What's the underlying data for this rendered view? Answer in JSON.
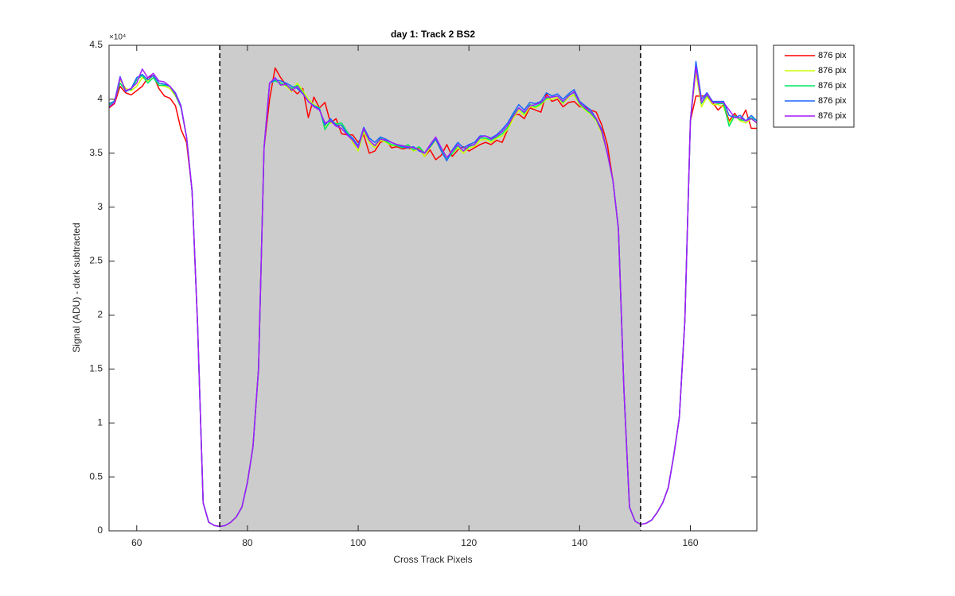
{
  "chart_data": {
    "type": "line",
    "title": "day 1: Track 2  BS2",
    "x_label": "Cross Track Pixels",
    "y_label": "Signal (ADU) - dark subtracted",
    "y_exponent": "×10⁴",
    "xlim": [
      55,
      172
    ],
    "ylim": [
      0,
      4.5
    ],
    "xticks": [
      60,
      80,
      100,
      120,
      140,
      160
    ],
    "yticks": [
      0,
      0.5,
      1,
      1.5,
      2,
      2.5,
      3,
      3.5,
      4,
      4.5
    ],
    "highlight_range": [
      75,
      151
    ],
    "legend": "outside-top-right",
    "x": [
      55,
      56,
      57,
      58,
      59,
      60,
      61,
      62,
      63,
      64,
      65,
      66,
      67,
      68,
      69,
      70,
      71,
      72,
      73,
      74,
      75,
      76,
      77,
      78,
      79,
      80,
      81,
      82,
      83,
      84,
      85,
      86,
      87,
      88,
      89,
      90,
      91,
      92,
      93,
      94,
      95,
      96,
      97,
      98,
      99,
      100,
      101,
      102,
      103,
      104,
      105,
      106,
      107,
      108,
      109,
      110,
      111,
      112,
      113,
      114,
      115,
      116,
      117,
      118,
      119,
      120,
      121,
      122,
      123,
      124,
      125,
      126,
      127,
      128,
      129,
      130,
      131,
      132,
      133,
      134,
      135,
      136,
      137,
      138,
      139,
      140,
      141,
      142,
      143,
      144,
      145,
      146,
      147,
      148,
      149,
      150,
      151,
      152,
      153,
      154,
      155,
      156,
      157,
      158,
      159,
      160,
      161,
      162,
      163,
      164,
      165,
      166,
      167,
      168,
      169,
      170,
      171,
      172
    ],
    "series": [
      {
        "name": "876 pix",
        "color": "#ff0000",
        "values": [
          3.92,
          3.96,
          4.12,
          4.06,
          4.04,
          4.08,
          4.12,
          4.2,
          4.22,
          4.1,
          4.03,
          4.01,
          3.94,
          3.72,
          3.6,
          3.15,
          1.9,
          0.26,
          0.08,
          0.05,
          0.04,
          0.05,
          0.08,
          0.13,
          0.22,
          0.45,
          0.78,
          1.5,
          3.55,
          4.0,
          4.29,
          4.2,
          4.13,
          4.1,
          4.05,
          4.1,
          3.83,
          4.02,
          3.92,
          3.97,
          3.78,
          3.82,
          3.68,
          3.67,
          3.67,
          3.6,
          3.67,
          3.5,
          3.52,
          3.6,
          3.62,
          3.55,
          3.56,
          3.54,
          3.55,
          3.53,
          3.55,
          3.47,
          3.53,
          3.44,
          3.48,
          3.58,
          3.47,
          3.53,
          3.56,
          3.52,
          3.55,
          3.58,
          3.6,
          3.58,
          3.62,
          3.6,
          3.72,
          3.85,
          3.86,
          3.82,
          3.92,
          3.9,
          3.88,
          4.05,
          3.98,
          4.0,
          3.93,
          3.97,
          3.98,
          3.93,
          3.93,
          3.9,
          3.88,
          3.76,
          3.58,
          3.25,
          2.8,
          1.3,
          0.22,
          0.09,
          0.06,
          0.07,
          0.1,
          0.17,
          0.26,
          0.4,
          0.7,
          1.05,
          1.95,
          3.8,
          4.03,
          4.03,
          4.03,
          3.97,
          3.9,
          3.95,
          3.8,
          3.87,
          3.8,
          3.9,
          3.73,
          3.73
        ]
      },
      {
        "name": "876 pix",
        "color": "#ccff00",
        "values": [
          3.95,
          3.98,
          4.18,
          4.1,
          4.08,
          4.12,
          4.2,
          4.17,
          4.2,
          4.13,
          4.12,
          4.1,
          4.03,
          3.93,
          3.65,
          3.15,
          1.9,
          0.26,
          0.08,
          0.05,
          0.04,
          0.05,
          0.08,
          0.13,
          0.22,
          0.45,
          0.78,
          1.5,
          3.55,
          4.15,
          4.18,
          4.15,
          4.12,
          4.07,
          4.15,
          4.08,
          4.0,
          3.95,
          3.92,
          3.75,
          3.78,
          3.78,
          3.75,
          3.7,
          3.6,
          3.52,
          3.7,
          3.6,
          3.55,
          3.62,
          3.6,
          3.57,
          3.57,
          3.55,
          3.57,
          3.52,
          3.54,
          3.47,
          3.55,
          3.62,
          3.52,
          3.45,
          3.5,
          3.55,
          3.5,
          3.55,
          3.56,
          3.62,
          3.63,
          3.6,
          3.64,
          3.66,
          3.72,
          3.82,
          3.9,
          3.85,
          3.93,
          3.92,
          3.95,
          4.0,
          4.0,
          4.02,
          3.96,
          4.02,
          4.04,
          3.95,
          3.9,
          3.86,
          3.8,
          3.68,
          3.5,
          3.25,
          2.8,
          1.3,
          0.22,
          0.09,
          0.06,
          0.07,
          0.1,
          0.17,
          0.26,
          0.4,
          0.7,
          1.05,
          1.95,
          3.8,
          4.25,
          3.93,
          4.02,
          3.95,
          3.95,
          3.93,
          3.78,
          3.85,
          3.8,
          3.78,
          3.82,
          3.78
        ]
      },
      {
        "name": "876 pix",
        "color": "#00e864",
        "values": [
          3.94,
          3.99,
          4.15,
          4.08,
          4.09,
          4.18,
          4.22,
          4.15,
          4.2,
          4.13,
          4.13,
          4.12,
          4.04,
          3.92,
          3.65,
          3.15,
          1.9,
          0.26,
          0.08,
          0.05,
          0.04,
          0.05,
          0.08,
          0.13,
          0.22,
          0.45,
          0.78,
          1.5,
          3.55,
          4.15,
          4.17,
          4.15,
          4.13,
          4.1,
          4.13,
          4.06,
          3.98,
          3.94,
          3.92,
          3.72,
          3.8,
          3.77,
          3.78,
          3.7,
          3.63,
          3.55,
          3.72,
          3.62,
          3.57,
          3.64,
          3.61,
          3.58,
          3.57,
          3.55,
          3.58,
          3.53,
          3.56,
          3.5,
          3.57,
          3.63,
          3.53,
          3.44,
          3.5,
          3.57,
          3.52,
          3.56,
          3.58,
          3.64,
          3.64,
          3.62,
          3.65,
          3.68,
          3.74,
          3.86,
          3.92,
          3.87,
          3.95,
          3.93,
          3.96,
          4.01,
          4.02,
          4.03,
          3.97,
          4.04,
          4.06,
          3.96,
          3.91,
          3.87,
          3.81,
          3.7,
          3.5,
          3.25,
          2.8,
          1.3,
          0.22,
          0.09,
          0.06,
          0.07,
          0.1,
          0.17,
          0.26,
          0.4,
          0.7,
          1.05,
          1.95,
          3.8,
          4.33,
          3.96,
          4.04,
          3.97,
          3.96,
          3.96,
          3.75,
          3.85,
          3.81,
          3.8,
          3.83,
          3.8
        ]
      },
      {
        "name": "876 pix",
        "color": "#1a66ff",
        "values": [
          3.96,
          3.98,
          4.21,
          4.07,
          4.1,
          4.2,
          4.23,
          4.18,
          4.22,
          4.15,
          4.14,
          4.12,
          4.06,
          3.94,
          3.65,
          3.15,
          1.9,
          0.26,
          0.08,
          0.05,
          0.04,
          0.05,
          0.08,
          0.13,
          0.22,
          0.45,
          0.78,
          1.5,
          3.55,
          4.15,
          4.18,
          4.17,
          4.15,
          4.12,
          4.1,
          4.05,
          3.98,
          3.94,
          3.91,
          3.76,
          3.82,
          3.76,
          3.76,
          3.68,
          3.64,
          3.57,
          3.74,
          3.64,
          3.6,
          3.65,
          3.63,
          3.6,
          3.58,
          3.56,
          3.55,
          3.56,
          3.52,
          3.5,
          3.56,
          3.63,
          3.52,
          3.43,
          3.53,
          3.6,
          3.55,
          3.58,
          3.6,
          3.66,
          3.66,
          3.64,
          3.67,
          3.72,
          3.78,
          3.87,
          3.95,
          3.9,
          3.97,
          3.96,
          3.98,
          4.06,
          4.03,
          4.05,
          4.0,
          4.05,
          4.09,
          3.98,
          3.94,
          3.9,
          3.82,
          3.72,
          3.5,
          3.25,
          2.8,
          1.3,
          0.22,
          0.09,
          0.06,
          0.07,
          0.1,
          0.17,
          0.26,
          0.4,
          0.7,
          1.05,
          1.95,
          3.8,
          4.35,
          4.0,
          4.06,
          3.98,
          3.98,
          3.98,
          3.85,
          3.83,
          3.85,
          3.8,
          3.85,
          3.8
        ]
      },
      {
        "name": "876 pix",
        "color": "#a51aff",
        "values": [
          3.93,
          3.97,
          4.2,
          4.08,
          4.1,
          4.15,
          4.28,
          4.2,
          4.24,
          4.17,
          4.16,
          4.12,
          4.05,
          3.93,
          3.65,
          3.15,
          1.9,
          0.26,
          0.08,
          0.05,
          0.04,
          0.05,
          0.08,
          0.13,
          0.22,
          0.45,
          0.78,
          1.5,
          3.55,
          4.15,
          4.2,
          4.13,
          4.14,
          4.08,
          4.12,
          4.05,
          3.98,
          3.93,
          3.9,
          3.78,
          3.8,
          3.75,
          3.73,
          3.67,
          3.62,
          3.55,
          3.73,
          3.62,
          3.57,
          3.63,
          3.62,
          3.6,
          3.58,
          3.57,
          3.56,
          3.55,
          3.53,
          3.5,
          3.58,
          3.65,
          3.55,
          3.46,
          3.52,
          3.58,
          3.52,
          3.57,
          3.58,
          3.65,
          3.66,
          3.63,
          3.66,
          3.7,
          3.76,
          3.84,
          3.92,
          3.88,
          3.94,
          3.95,
          3.97,
          4.02,
          4.02,
          4.03,
          3.98,
          4.03,
          4.07,
          3.97,
          3.92,
          3.88,
          3.82,
          3.7,
          3.5,
          3.25,
          2.8,
          1.3,
          0.22,
          0.09,
          0.06,
          0.07,
          0.1,
          0.17,
          0.26,
          0.4,
          0.7,
          1.05,
          1.95,
          3.8,
          4.3,
          3.97,
          4.05,
          3.97,
          3.97,
          3.97,
          3.9,
          3.83,
          3.83,
          3.8,
          3.82,
          3.78
        ]
      }
    ]
  }
}
